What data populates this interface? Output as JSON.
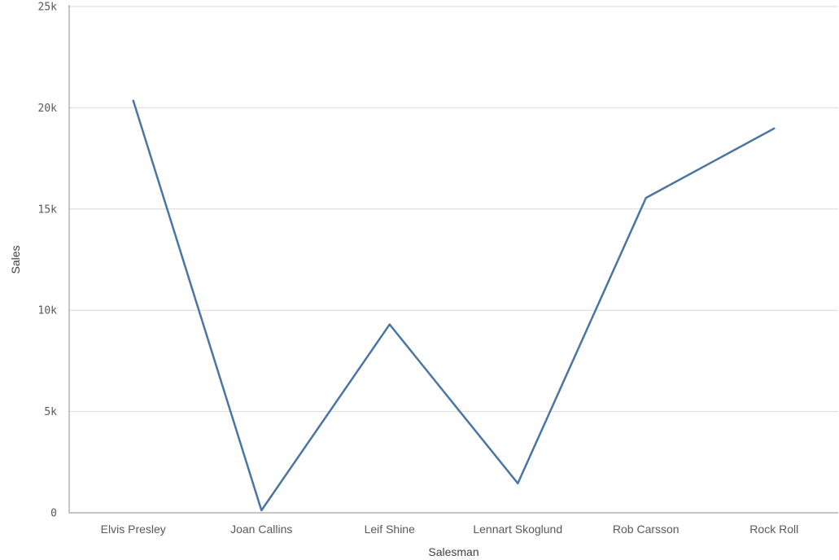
{
  "chart_data": {
    "type": "line",
    "title": "",
    "xlabel": "Salesman",
    "ylabel": "Sales",
    "categories": [
      "Elvis Presley",
      "Joan Callins",
      "Leif Shine",
      "Lennart Skoglund",
      "Rob Carsson",
      "Rock Roll"
    ],
    "series": [
      {
        "values": [
          20350,
          120,
          9300,
          1450,
          15550,
          18980
        ]
      }
    ],
    "ylim": [
      0,
      25000
    ],
    "yticks": [
      0,
      5000,
      10000,
      15000,
      20000,
      25000
    ],
    "ytick_labels": [
      "0",
      "5k",
      "10k",
      "15k",
      "20k",
      "25k"
    ],
    "grid": true,
    "color": "#4a75a0"
  }
}
